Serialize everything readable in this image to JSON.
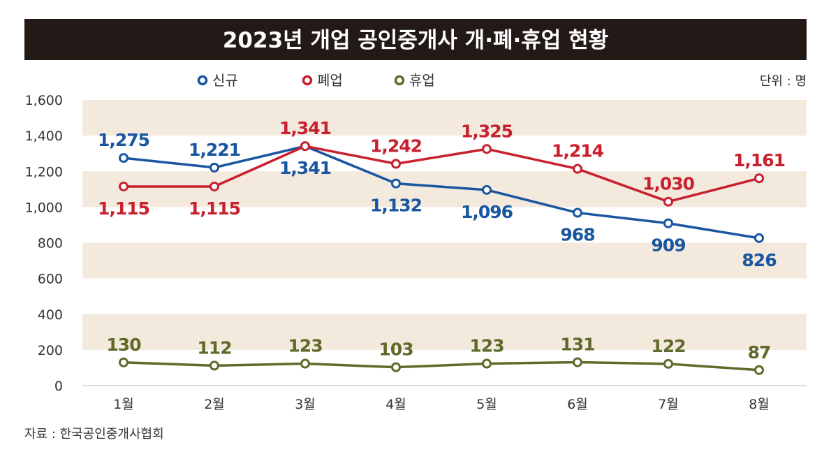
{
  "chart_data": {
    "type": "line",
    "title": "2023년 개업 공인중개사 개·폐·휴업 현황",
    "unit": "단위 : 명",
    "source": "자료 : 한국공인중개사협회",
    "categories": [
      "1월",
      "2월",
      "3월",
      "4월",
      "5월",
      "6월",
      "7월",
      "8월"
    ],
    "yticks": [
      "0",
      "200",
      "400",
      "600",
      "800",
      "1,000",
      "1,200",
      "1,400",
      "1,600"
    ],
    "ylim": [
      0,
      1600
    ],
    "grid": "alternating horizontal bands",
    "legend": "top-center",
    "series": [
      {
        "name": "신규",
        "color": "#1a56a0",
        "values": [
          1275,
          1221,
          1341,
          1132,
          1096,
          968,
          909,
          826
        ],
        "labels": [
          "1,275",
          "1,221",
          "1,341",
          "1,132",
          "1,096",
          "968",
          "909",
          "826"
        ],
        "label_pos": [
          "above",
          "above",
          "below",
          "below",
          "below",
          "below",
          "below",
          "below"
        ]
      },
      {
        "name": "폐업",
        "color": "#c8202f",
        "values": [
          1115,
          1115,
          1341,
          1242,
          1325,
          1214,
          1030,
          1161
        ],
        "labels": [
          "1,115",
          "1,115",
          "1,341",
          "1,242",
          "1,325",
          "1,214",
          "1,030",
          "1,161"
        ],
        "label_pos": [
          "below",
          "below",
          "above",
          "above",
          "above",
          "above",
          "above",
          "above"
        ]
      },
      {
        "name": "휴업",
        "color": "#5e6b2a",
        "values": [
          130,
          112,
          123,
          103,
          123,
          131,
          122,
          87
        ],
        "labels": [
          "130",
          "112",
          "123",
          "103",
          "123",
          "131",
          "122",
          "87"
        ],
        "label_pos": [
          "above",
          "above",
          "above",
          "above",
          "above",
          "above",
          "above",
          "above"
        ]
      }
    ],
    "colors": {
      "title_bg": "#231a17",
      "band": "#f3e9dd"
    }
  }
}
